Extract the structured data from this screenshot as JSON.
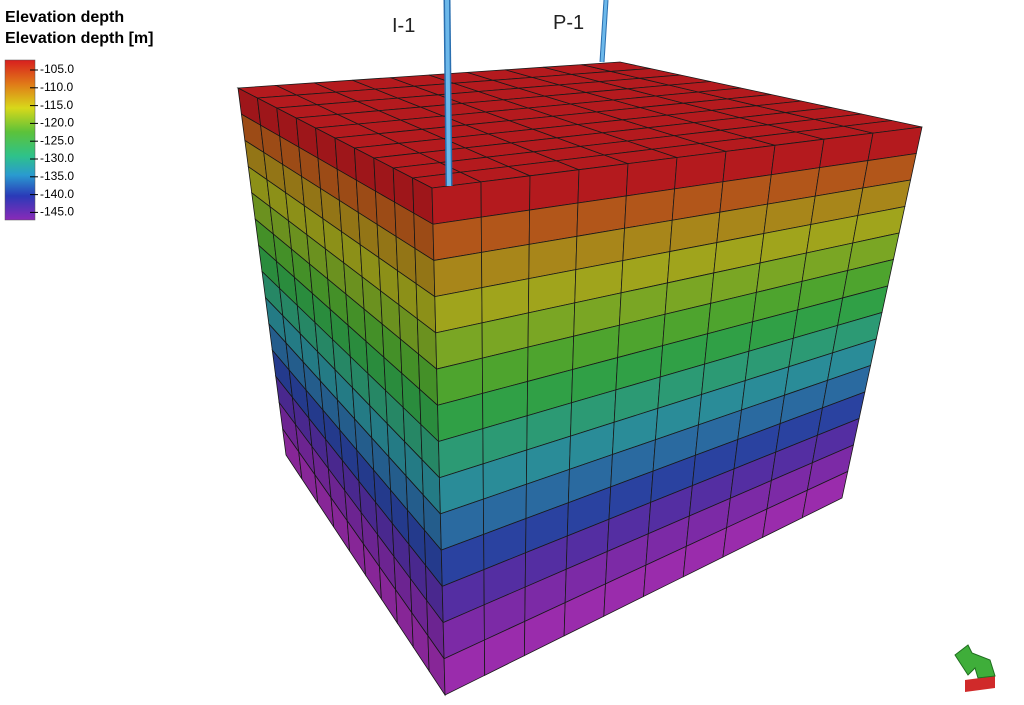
{
  "legend": {
    "title": "Elevation depth",
    "subtitle": "Elevation depth [m]",
    "labels": [
      "-105.0",
      "-110.0",
      "-115.0",
      "-120.0",
      "-125.0",
      "-130.0",
      "-135.0",
      "-140.0",
      "-145.0"
    ]
  },
  "wells": [
    {
      "label": "I-1"
    },
    {
      "label": "P-1"
    }
  ]
}
